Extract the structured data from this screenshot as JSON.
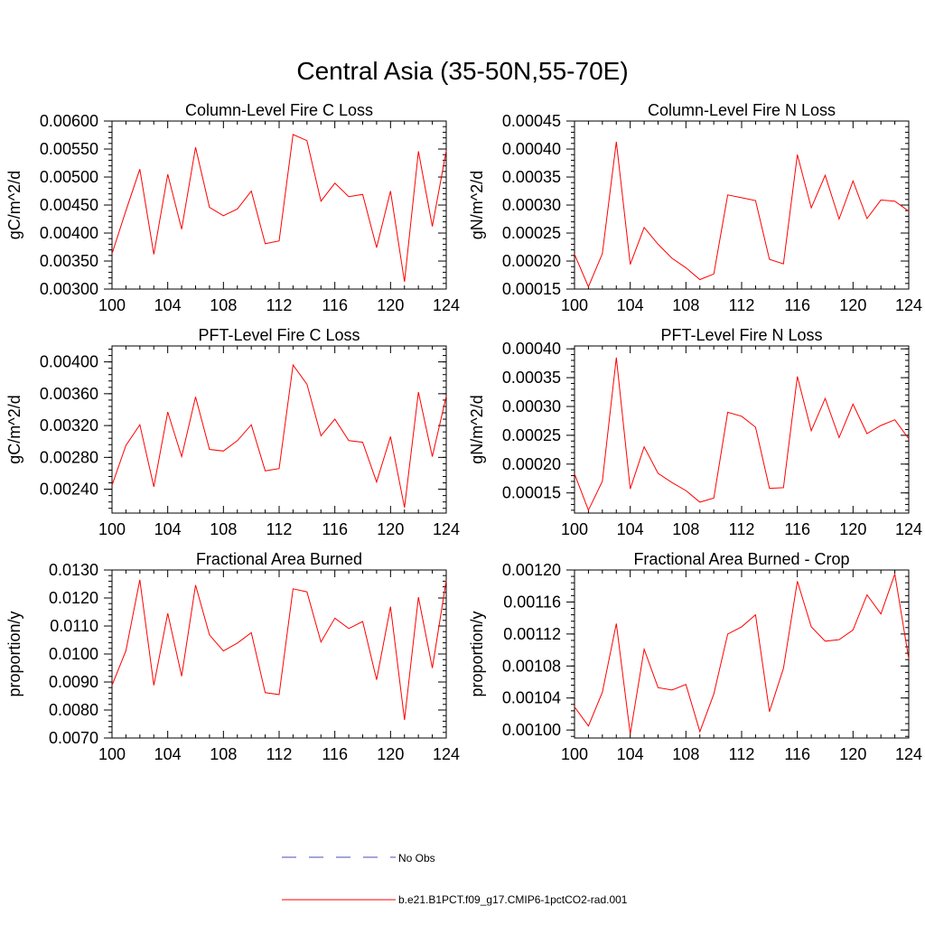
{
  "title": "Central Asia (35-50N,55-70E)",
  "colors": {
    "model": "#ff0000",
    "obs": "#4b4bb4",
    "axis": "#000000"
  },
  "legend": {
    "obs_label": "No Obs",
    "model_label": "b.e21.B1PCT.f09_g17.CMIP6-1pctCO2-rad.001"
  },
  "chart_data": [
    {
      "type": "line",
      "title": "Column-Level Fire C Loss",
      "ylabel": "gC/m^2/d",
      "xlim": [
        100,
        124
      ],
      "ylim": [
        0.003,
        0.006
      ],
      "xticks": [
        "100",
        "104",
        "108",
        "112",
        "116",
        "120",
        "124"
      ],
      "yticks": [
        "0.00300",
        "0.00350",
        "0.00400",
        "0.00450",
        "0.00500",
        "0.00550",
        "0.00600"
      ],
      "series": [
        {
          "name": "b.e21.B1PCT.f09_g17.CMIP6-1pctCO2-rad.001",
          "x": [
            100,
            101,
            102,
            103,
            104,
            105,
            106,
            107,
            108,
            109,
            110,
            111,
            112,
            113,
            114,
            115,
            116,
            117,
            118,
            119,
            120,
            121,
            122,
            123,
            124
          ],
          "values": [
            0.00363,
            0.0044,
            0.00514,
            0.00362,
            0.00505,
            0.00407,
            0.00553,
            0.00446,
            0.00431,
            0.00443,
            0.00475,
            0.00381,
            0.00386,
            0.00576,
            0.00565,
            0.00457,
            0.00489,
            0.00465,
            0.00469,
            0.00374,
            0.00475,
            0.00313,
            0.00546,
            0.00412,
            0.00547
          ]
        }
      ]
    },
    {
      "type": "line",
      "title": "Column-Level Fire N Loss",
      "ylabel": "gN/m^2/d",
      "xlim": [
        100,
        124
      ],
      "ylim": [
        0.00015,
        0.00045
      ],
      "xticks": [
        "100",
        "104",
        "108",
        "112",
        "116",
        "120",
        "124"
      ],
      "yticks": [
        "0.00015",
        "0.00020",
        "0.00025",
        "0.00030",
        "0.00035",
        "0.00040",
        "0.00045"
      ],
      "series": [
        {
          "name": "b.e21.B1PCT.f09_g17.CMIP6-1pctCO2-rad.001",
          "x": [
            100,
            101,
            102,
            103,
            104,
            105,
            106,
            107,
            108,
            109,
            110,
            111,
            112,
            113,
            114,
            115,
            116,
            117,
            118,
            119,
            120,
            121,
            122,
            123,
            124
          ],
          "values": [
            0.000212,
            0.000154,
            0.000213,
            0.000413,
            0.000194,
            0.00026,
            0.00023,
            0.000205,
            0.000188,
            0.000167,
            0.000177,
            0.000318,
            0.000313,
            0.000308,
            0.000203,
            0.000195,
            0.00039,
            0.000295,
            0.000353,
            0.000275,
            0.000343,
            0.000276,
            0.000309,
            0.000307,
            0.000289
          ]
        }
      ]
    },
    {
      "type": "line",
      "title": "PFT-Level Fire C Loss",
      "ylabel": "gC/m^2/d",
      "xlim": [
        100,
        124
      ],
      "ylim": [
        0.0021,
        0.0042
      ],
      "xticks": [
        "100",
        "104",
        "108",
        "112",
        "116",
        "120",
        "124"
      ],
      "yticks": [
        "0.00240",
        "0.00280",
        "0.00320",
        "0.00360",
        "0.00400"
      ],
      "series": [
        {
          "name": "b.e21.B1PCT.f09_g17.CMIP6-1pctCO2-rad.001",
          "x": [
            100,
            101,
            102,
            103,
            104,
            105,
            106,
            107,
            108,
            109,
            110,
            111,
            112,
            113,
            114,
            115,
            116,
            117,
            118,
            119,
            120,
            121,
            122,
            123,
            124
          ],
          "values": [
            0.00245,
            0.00295,
            0.00321,
            0.00243,
            0.00337,
            0.00281,
            0.00356,
            0.0029,
            0.00288,
            0.00301,
            0.00321,
            0.00263,
            0.00266,
            0.00396,
            0.00372,
            0.00307,
            0.00328,
            0.00301,
            0.00299,
            0.00249,
            0.00306,
            0.00217,
            0.00362,
            0.00281,
            0.00357
          ]
        }
      ]
    },
    {
      "type": "line",
      "title": "PFT-Level Fire N Loss",
      "ylabel": "gN/m^2/d",
      "xlim": [
        100,
        124
      ],
      "ylim": [
        0.000115,
        0.000405
      ],
      "xticks": [
        "100",
        "104",
        "108",
        "112",
        "116",
        "120",
        "124"
      ],
      "yticks": [
        "0.00015",
        "0.00020",
        "0.00025",
        "0.00030",
        "0.00035",
        "0.00040"
      ],
      "series": [
        {
          "name": "b.e21.B1PCT.f09_g17.CMIP6-1pctCO2-rad.001",
          "x": [
            100,
            101,
            102,
            103,
            104,
            105,
            106,
            107,
            108,
            109,
            110,
            111,
            112,
            113,
            114,
            115,
            116,
            117,
            118,
            119,
            120,
            121,
            122,
            123,
            124
          ],
          "values": [
            0.000183,
            0.00012,
            0.00017,
            0.000385,
            0.000157,
            0.00023,
            0.000184,
            0.000168,
            0.000154,
            0.000134,
            0.000141,
            0.00029,
            0.000283,
            0.000264,
            0.000158,
            0.000159,
            0.000352,
            0.000258,
            0.000314,
            0.000246,
            0.000304,
            0.000253,
            0.000267,
            0.000277,
            0.000244
          ]
        }
      ]
    },
    {
      "type": "line",
      "title": "Fractional Area Burned",
      "ylabel": "proportion/y",
      "xlim": [
        100,
        124
      ],
      "ylim": [
        0.007,
        0.013
      ],
      "xticks": [
        "100",
        "104",
        "108",
        "112",
        "116",
        "120",
        "124"
      ],
      "yticks": [
        "0.0070",
        "0.0080",
        "0.0090",
        "0.0100",
        "0.0110",
        "0.0120",
        "0.0130"
      ],
      "series": [
        {
          "name": "b.e21.B1PCT.f09_g17.CMIP6-1pctCO2-rad.001",
          "x": [
            100,
            101,
            102,
            103,
            104,
            105,
            106,
            107,
            108,
            109,
            110,
            111,
            112,
            113,
            114,
            115,
            116,
            117,
            118,
            119,
            120,
            121,
            122,
            123,
            124
          ],
          "values": [
            0.00888,
            0.01012,
            0.01265,
            0.00888,
            0.01145,
            0.00921,
            0.01246,
            0.01068,
            0.01011,
            0.01039,
            0.01076,
            0.00862,
            0.00855,
            0.01233,
            0.01222,
            0.01043,
            0.01128,
            0.01091,
            0.01116,
            0.00908,
            0.01169,
            0.00765,
            0.01203,
            0.0095,
            0.01263
          ]
        }
      ]
    },
    {
      "type": "line",
      "title": "Fractional Area Burned - Crop",
      "ylabel": "proportion/y",
      "xlim": [
        100,
        124
      ],
      "ylim": [
        0.00099,
        0.0012
      ],
      "xticks": [
        "100",
        "104",
        "108",
        "112",
        "116",
        "120",
        "124"
      ],
      "yticks": [
        "0.00100",
        "0.00104",
        "0.00108",
        "0.00112",
        "0.00116",
        "0.00120"
      ],
      "series": [
        {
          "name": "b.e21.B1PCT.f09_g17.CMIP6-1pctCO2-rad.001",
          "x": [
            100,
            101,
            102,
            103,
            104,
            105,
            106,
            107,
            108,
            109,
            110,
            111,
            112,
            113,
            114,
            115,
            116,
            117,
            118,
            119,
            120,
            121,
            122,
            123,
            124
          ],
          "values": [
            0.001029,
            0.001005,
            0.001047,
            0.001133,
            0.000995,
            0.001101,
            0.001053,
            0.00105,
            0.001057,
            0.000998,
            0.001045,
            0.00112,
            0.001129,
            0.001144,
            0.001023,
            0.001077,
            0.001186,
            0.001129,
            0.001111,
            0.001113,
            0.001125,
            0.001169,
            0.001145,
            0.001195,
            0.001089
          ]
        }
      ]
    }
  ]
}
